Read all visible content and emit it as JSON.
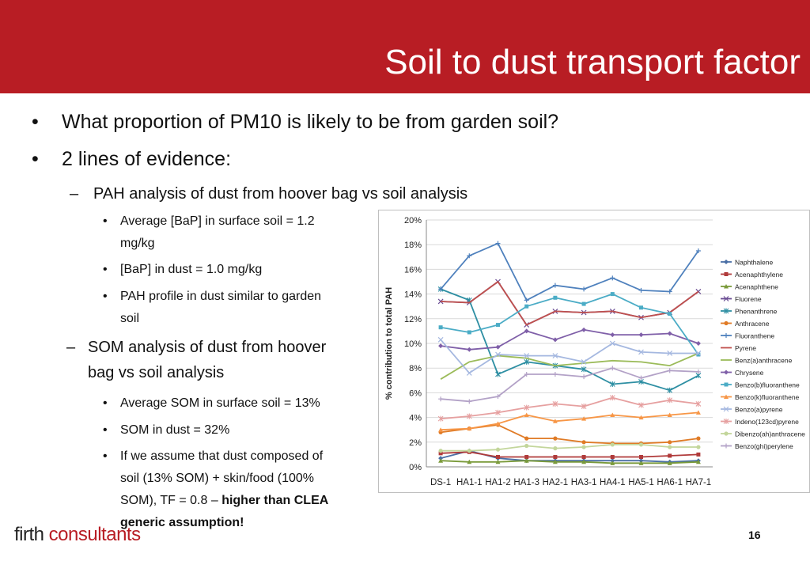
{
  "title": "Soil to dust transport factor",
  "bullets": {
    "q": "What proportion of PM10 is likely to be from garden soil?",
    "evidence": "2 lines of evidence:",
    "pah_head": "PAH analysis of dust from hoover bag vs soil analysis",
    "pah_1a": "Average [BaP] in surface soil = 1.2",
    "pah_1b": "mg/kg",
    "pah_2": "[BaP] in dust = 1.0 mg/kg",
    "pah_3a": "PAH profile in dust similar to garden",
    "pah_3b": "soil",
    "som_head_a": "SOM analysis of dust from hoover",
    "som_head_b": "bag vs soil analysis",
    "som_1": "Average SOM in surface soil = 13%",
    "som_2": "SOM in dust = 32%",
    "som_3a": "If we assume that dust composed of",
    "som_3b": "soil (13% SOM) + skin/food (100%",
    "som_3c": "SOM), TF = 0.8 – ",
    "som_3c_bold": "higher than CLEA",
    "som_3d_bold": "generic assumption!"
  },
  "logo": {
    "part1": "firth",
    "part2": " consultants"
  },
  "page_number": "16",
  "chart_data": {
    "type": "line",
    "ylabel": "% contribution to total PAH",
    "ylim": [
      0,
      20
    ],
    "yticks": [
      "0%",
      "2%",
      "4%",
      "6%",
      "8%",
      "10%",
      "12%",
      "14%",
      "16%",
      "18%",
      "20%"
    ],
    "categories": [
      "DS-1",
      "HA1-1",
      "HA1-2",
      "HA1-3",
      "HA2-1",
      "HA3-1",
      "HA4-1",
      "HA5-1",
      "HA6-1",
      "HA7-1"
    ],
    "legend_position": "right",
    "series": [
      {
        "name": "Naphthalene",
        "color": "#4a6fa5",
        "marker": "diamond",
        "values": [
          0.7,
          1.3,
          0.7,
          0.5,
          0.5,
          0.5,
          0.5,
          0.5,
          0.4,
          0.5
        ]
      },
      {
        "name": "Acenaphthylene",
        "color": "#b03a3a",
        "marker": "square",
        "values": [
          1.1,
          1.2,
          0.8,
          0.8,
          0.8,
          0.8,
          0.8,
          0.8,
          0.9,
          1.0
        ]
      },
      {
        "name": "Acenaphthene",
        "color": "#7a9a3a",
        "marker": "triangle",
        "values": [
          0.5,
          0.4,
          0.4,
          0.5,
          0.4,
          0.4,
          0.3,
          0.3,
          0.3,
          0.4
        ]
      },
      {
        "name": "Fluorene",
        "color": "#6a4c93",
        "marker": "x",
        "values": [
          13.4,
          13.3,
          15.0,
          11.5,
          12.6,
          12.5,
          12.6,
          12.1,
          12.5,
          14.2
        ]
      },
      {
        "name": "Phenanthrene",
        "color": "#2e8fa3",
        "marker": "star",
        "values": [
          14.4,
          13.5,
          7.5,
          8.5,
          8.2,
          7.9,
          6.7,
          6.9,
          6.2,
          7.4
        ]
      },
      {
        "name": "Anthracene",
        "color": "#e07b26",
        "marker": "circle",
        "values": [
          2.8,
          3.1,
          3.4,
          2.3,
          2.3,
          2.0,
          1.9,
          1.9,
          2.0,
          2.3
        ]
      },
      {
        "name": "Fluoranthene",
        "color": "#4f81bd",
        "marker": "plus",
        "values": [
          14.4,
          17.1,
          18.1,
          13.5,
          14.7,
          14.4,
          15.3,
          14.3,
          14.2,
          17.5
        ]
      },
      {
        "name": "Pyrene",
        "color": "#c0504d",
        "marker": "none",
        "values": [
          13.4,
          13.3,
          15.0,
          11.5,
          12.6,
          12.5,
          12.6,
          12.1,
          12.5,
          14.2
        ]
      },
      {
        "name": "Benz(a)anthracene",
        "color": "#9bbb59",
        "marker": "none",
        "values": [
          7.1,
          8.5,
          9.0,
          8.8,
          8.2,
          8.4,
          8.6,
          8.5,
          8.2,
          9.2
        ]
      },
      {
        "name": "Chrysene",
        "color": "#7f5fa8",
        "marker": "diamond",
        "values": [
          9.8,
          9.5,
          9.7,
          11.0,
          10.3,
          11.1,
          10.7,
          10.7,
          10.8,
          10.0
        ]
      },
      {
        "name": "Benzo(b)fluoranthene",
        "color": "#4bacc6",
        "marker": "square",
        "values": [
          11.3,
          10.9,
          11.5,
          13.0,
          13.7,
          13.2,
          14.0,
          12.9,
          12.4,
          9.1
        ]
      },
      {
        "name": "Benzo(k)fluoranthene",
        "color": "#f79646",
        "marker": "triangle",
        "values": [
          3.0,
          3.1,
          3.5,
          4.2,
          3.7,
          3.9,
          4.2,
          4.0,
          4.2,
          4.4
        ]
      },
      {
        "name": "Benzo(a)pyrene",
        "color": "#a5b8e0",
        "marker": "x",
        "values": [
          10.3,
          7.6,
          9.1,
          9.0,
          9.0,
          8.5,
          10.0,
          9.3,
          9.2,
          9.2
        ]
      },
      {
        "name": "Indeno(123cd)pyrene",
        "color": "#e6a0a0",
        "marker": "star",
        "values": [
          3.9,
          4.1,
          4.4,
          4.8,
          5.1,
          4.9,
          5.6,
          5.0,
          5.4,
          5.1
        ]
      },
      {
        "name": "Dibenzo(ah)anthracene",
        "color": "#c3d69b",
        "marker": "circle",
        "values": [
          1.3,
          1.3,
          1.4,
          1.7,
          1.5,
          1.6,
          1.8,
          1.8,
          1.6,
          1.6
        ]
      },
      {
        "name": "Benzo(ghi)perylene",
        "color": "#b3a2c7",
        "marker": "plus",
        "values": [
          5.5,
          5.3,
          5.7,
          7.5,
          7.5,
          7.3,
          8.0,
          7.2,
          7.8,
          7.7
        ]
      }
    ]
  }
}
